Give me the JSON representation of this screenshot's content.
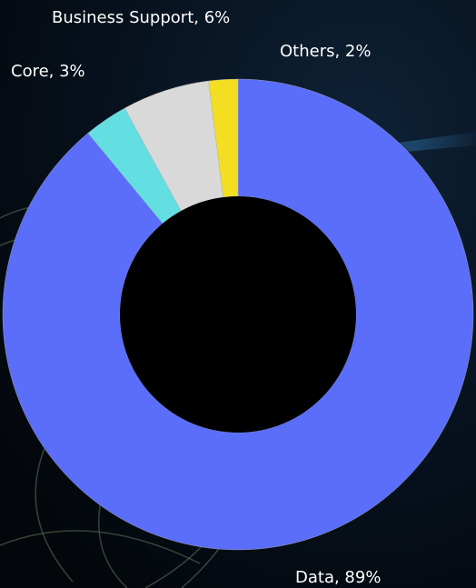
{
  "chart_data": {
    "type": "donut",
    "values": [
      89,
      3,
      6,
      2
    ],
    "value_labels": [
      "Data, 89%",
      "Core, 3%",
      "Business Support, 6%",
      "Others, 2%"
    ],
    "colors": [
      "#5a6ef9",
      "#63dfe2",
      "#d9d9d9",
      "#f3de21"
    ]
  }
}
